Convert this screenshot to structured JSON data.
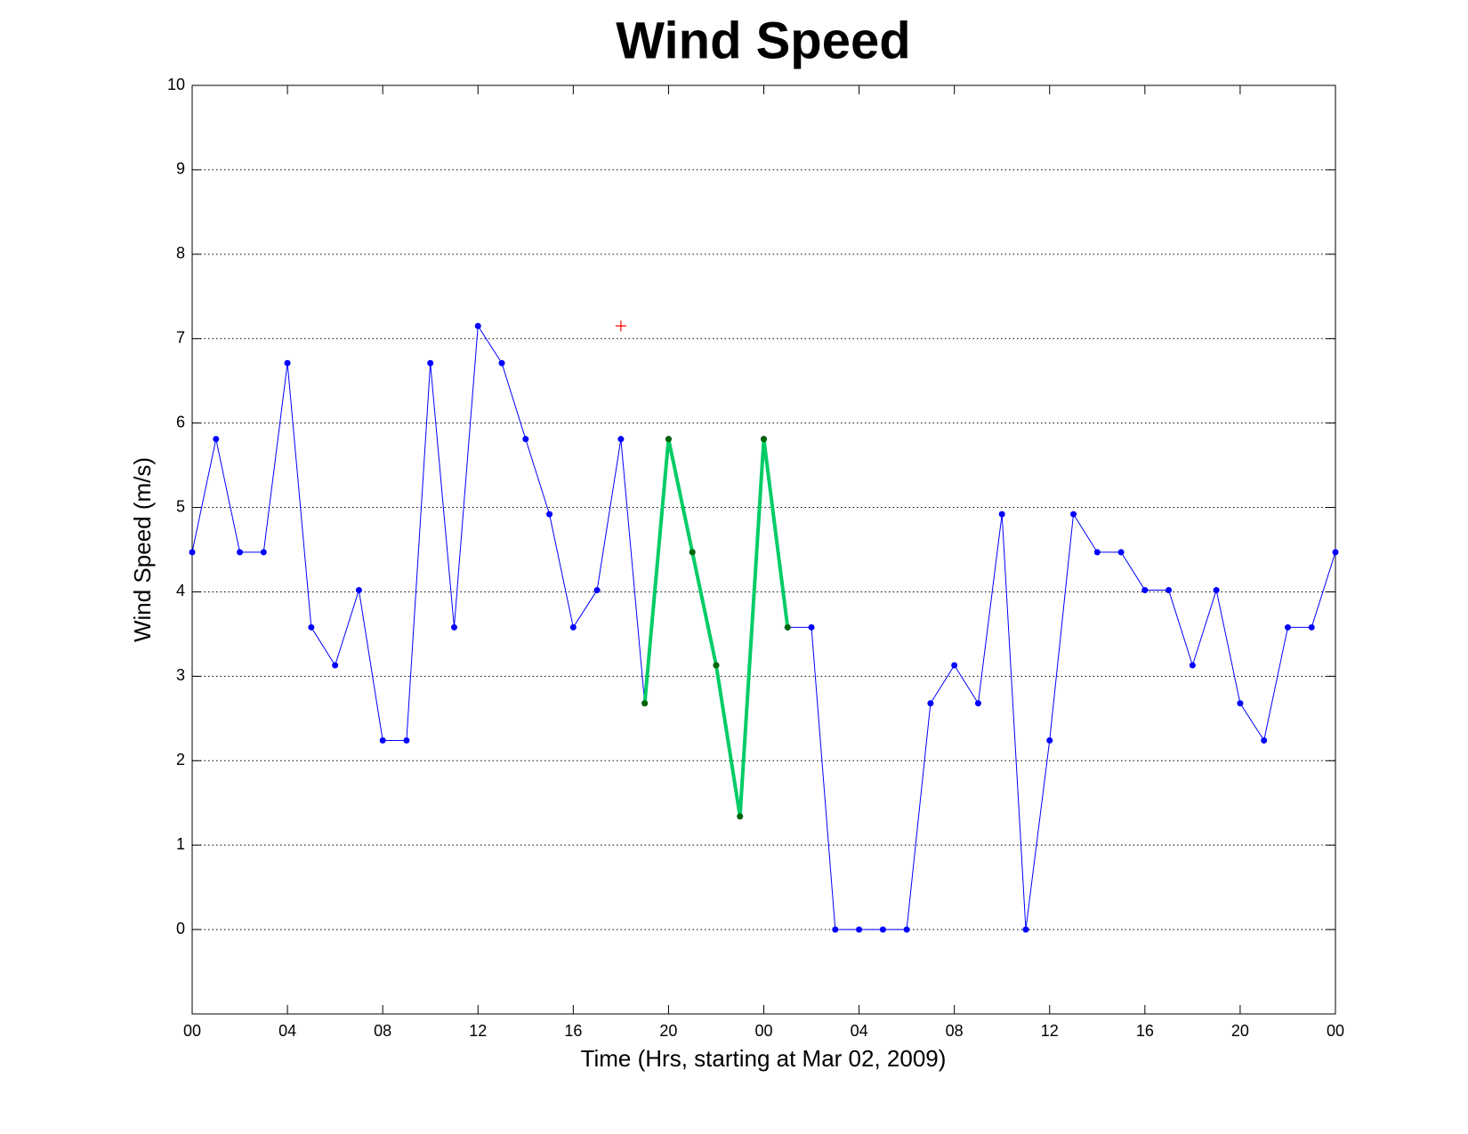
{
  "chart_data": {
    "type": "line",
    "title": "Wind Speed",
    "xlabel": "Time (Hrs, starting at Mar 02, 2009)",
    "ylabel": "Wind Speed (m/s)",
    "xlim": [
      0,
      48
    ],
    "ylim": [
      -1,
      10
    ],
    "xticks": [
      {
        "value": 0,
        "label": "00"
      },
      {
        "value": 4,
        "label": "04"
      },
      {
        "value": 8,
        "label": "08"
      },
      {
        "value": 12,
        "label": "12"
      },
      {
        "value": 16,
        "label": "16"
      },
      {
        "value": 20,
        "label": "20"
      },
      {
        "value": 24,
        "label": "00"
      },
      {
        "value": 28,
        "label": "04"
      },
      {
        "value": 32,
        "label": "08"
      },
      {
        "value": 36,
        "label": "12"
      },
      {
        "value": 40,
        "label": "16"
      },
      {
        "value": 44,
        "label": "20"
      },
      {
        "value": 48,
        "label": "00"
      }
    ],
    "yticks": [
      0,
      1,
      2,
      3,
      4,
      5,
      6,
      7,
      8,
      9,
      10
    ],
    "grid": "y",
    "series": [
      {
        "color": "#0000ff",
        "line_width": 1,
        "marker": "dot",
        "marker_color": "#0000ff",
        "x": [
          0,
          1,
          2,
          3,
          4,
          5,
          6,
          7,
          8,
          9,
          10,
          11,
          12,
          13,
          14,
          15,
          16,
          17,
          18,
          19,
          20,
          21,
          22,
          23,
          24,
          25,
          26,
          27,
          28,
          29,
          30,
          31,
          32,
          33,
          34,
          35,
          36,
          37,
          38,
          39,
          40,
          41,
          42,
          43,
          44,
          45,
          46,
          47,
          48
        ],
        "values": [
          4.47,
          5.81,
          4.47,
          4.47,
          6.71,
          3.58,
          3.13,
          4.02,
          2.24,
          2.24,
          6.71,
          3.58,
          7.15,
          6.71,
          5.81,
          4.92,
          3.58,
          4.02,
          5.81,
          2.68,
          5.81,
          4.47,
          3.13,
          1.34,
          5.81,
          3.58,
          3.58,
          0,
          0,
          0,
          0,
          2.68,
          3.13,
          2.68,
          4.92,
          0,
          2.24,
          4.92,
          4.47,
          4.47,
          4.02,
          4.02,
          3.13,
          4.02,
          2.68,
          2.24,
          3.58,
          3.58,
          4.47
        ]
      },
      {
        "color": "#00cc66",
        "line_width": 4,
        "marker": "dot",
        "marker_color": "#006600",
        "x": [
          19,
          20,
          21,
          22,
          23,
          24,
          25
        ],
        "values": [
          2.68,
          5.81,
          4.47,
          3.13,
          1.34,
          5.81,
          3.58
        ]
      },
      {
        "color": "#ff0000",
        "line_width": 0,
        "marker": "plus",
        "marker_color": "#ff0000",
        "x": [
          18
        ],
        "values": [
          7.15
        ]
      }
    ]
  }
}
